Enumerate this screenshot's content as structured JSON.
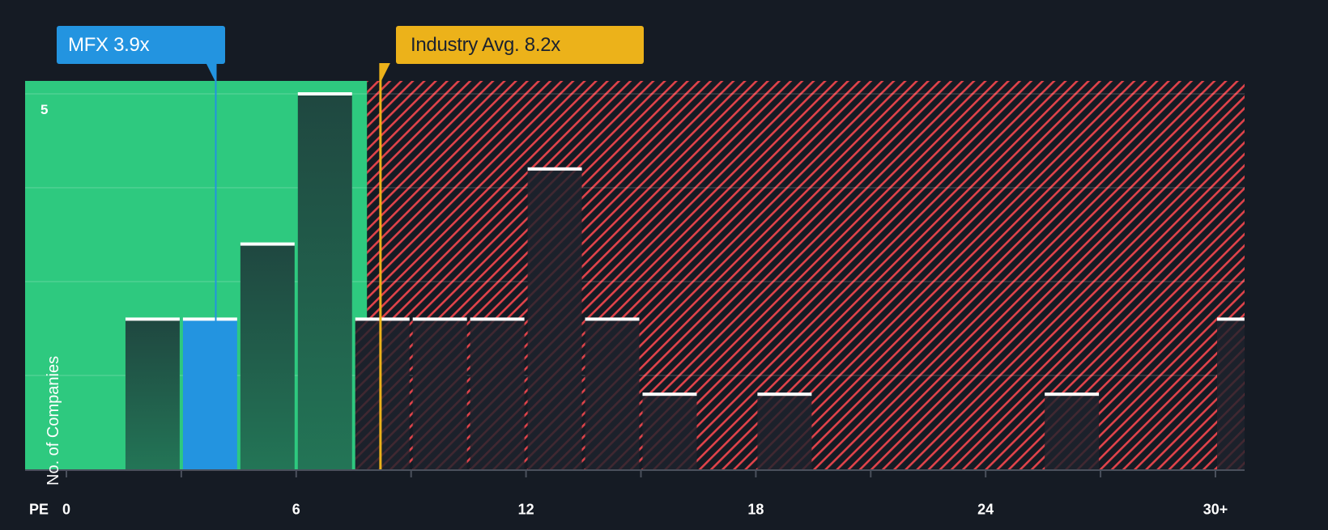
{
  "callouts": {
    "company": {
      "label": "MFX 3.9x",
      "value": 3.9,
      "color": "#2394e0"
    },
    "industry": {
      "label": "Industry Avg. 8.2x",
      "value": 8.2,
      "color": "#ecb21a"
    }
  },
  "axis": {
    "x_prefix": "PE",
    "x_ticks": [
      "0",
      "6",
      "12",
      "18",
      "24",
      "30+"
    ],
    "y_label": "No. of Companies",
    "y_tick": "5"
  },
  "colors": {
    "background": "#151b24",
    "undervalued_region": "#2ec97f",
    "overvalued_hatch": "#e0434a",
    "bar_in_green": "#1f4b3f",
    "bar_highlight": "#2394e0",
    "bar_top": "#ffffff"
  },
  "chart_data": {
    "type": "bar",
    "title": "",
    "xlabel": "PE",
    "ylabel": "No. of Companies",
    "x_ticks": [
      0,
      6,
      12,
      18,
      24,
      "30+"
    ],
    "ylim": [
      0,
      5
    ],
    "bin_width": 1.5,
    "categories": [
      "1.5-3",
      "3-4.5",
      "4.5-6",
      "6-7.5",
      "7.5-9",
      "9-10.5",
      "10.5-12",
      "12-13.5",
      "13.5-15",
      "15-16.5",
      "18-19.5",
      "25.5-27",
      "30+"
    ],
    "bins": [
      {
        "start": 1.5,
        "end": 3.0,
        "count": 2
      },
      {
        "start": 3.0,
        "end": 4.5,
        "count": 2,
        "highlight": true
      },
      {
        "start": 4.5,
        "end": 6.0,
        "count": 3
      },
      {
        "start": 6.0,
        "end": 7.5,
        "count": 5
      },
      {
        "start": 7.5,
        "end": 9.0,
        "count": 2
      },
      {
        "start": 9.0,
        "end": 10.5,
        "count": 2
      },
      {
        "start": 10.5,
        "end": 12.0,
        "count": 2
      },
      {
        "start": 12.0,
        "end": 13.5,
        "count": 4
      },
      {
        "start": 13.5,
        "end": 15.0,
        "count": 2
      },
      {
        "start": 15.0,
        "end": 16.5,
        "count": 1
      },
      {
        "start": 18.0,
        "end": 19.5,
        "count": 1
      },
      {
        "start": 25.5,
        "end": 27.0,
        "count": 1
      },
      {
        "start": 30.0,
        "end": 30.8,
        "count": 2,
        "label": "30+"
      }
    ],
    "values": [
      2,
      2,
      3,
      5,
      2,
      2,
      2,
      4,
      2,
      1,
      1,
      1,
      2
    ],
    "markers": [
      {
        "name": "MFX",
        "value": 3.9,
        "label": "MFX 3.9x"
      },
      {
        "name": "Industry Avg.",
        "value": 8.2,
        "label": "Industry Avg. 8.2x"
      }
    ],
    "regions": [
      {
        "name": "undervalued",
        "from": -1.1,
        "to": 7.85,
        "fill": "green"
      },
      {
        "name": "overvalued",
        "from": 7.85,
        "to": 30.8,
        "fill": "red-hatch"
      }
    ],
    "grid": true,
    "legend": "none"
  }
}
